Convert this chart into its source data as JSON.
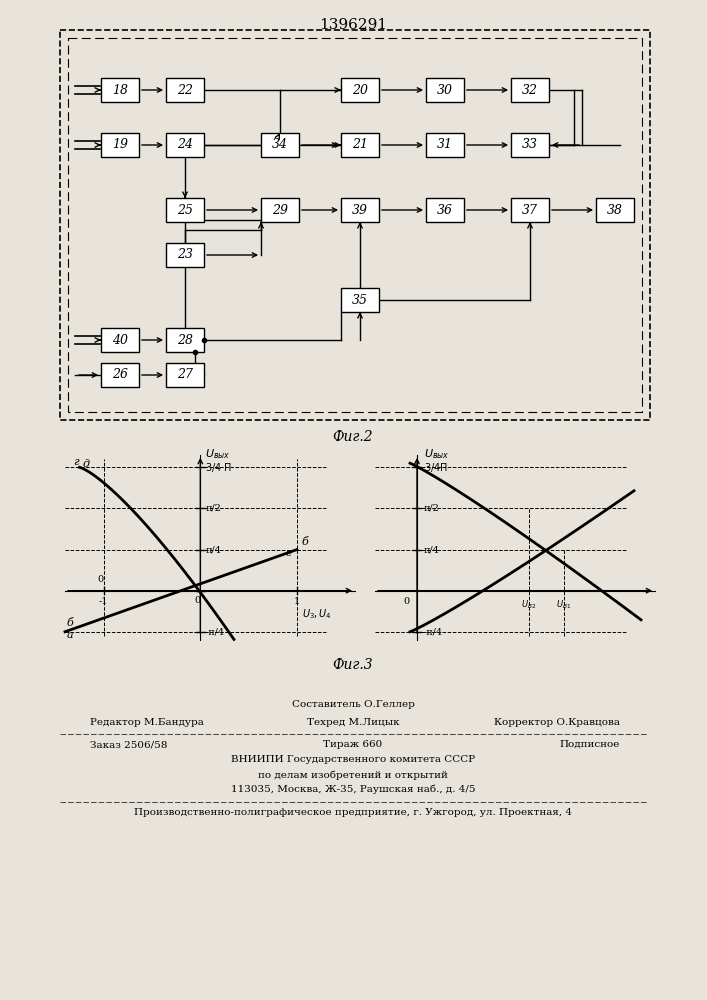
{
  "title": "1396291",
  "fig2_label": "Фиг.2",
  "fig3_label": "Фиг.3",
  "bg_color": "#e8e4dc",
  "footer": {
    "line1_center": "Составитель О.Геллер",
    "line2_left": "Редактор М.Бандура",
    "line2_center": "Техред М.Лицык",
    "line2_right": "Корректор О.Кравцова",
    "line3_left": "Заказ 2506/58",
    "line3_center": "Тираж 660",
    "line3_right": "Подписное",
    "line4": "ВНИИПИ Государственного комитета СССР",
    "line5": "по делам изобретений и открытий",
    "line6": "113035, Москва, Ж-35, Раушская наб., д. 4/5",
    "line7": "Производственно-полиграфическое предприятие, г. Ужгород, ул. Проектная, 4"
  }
}
